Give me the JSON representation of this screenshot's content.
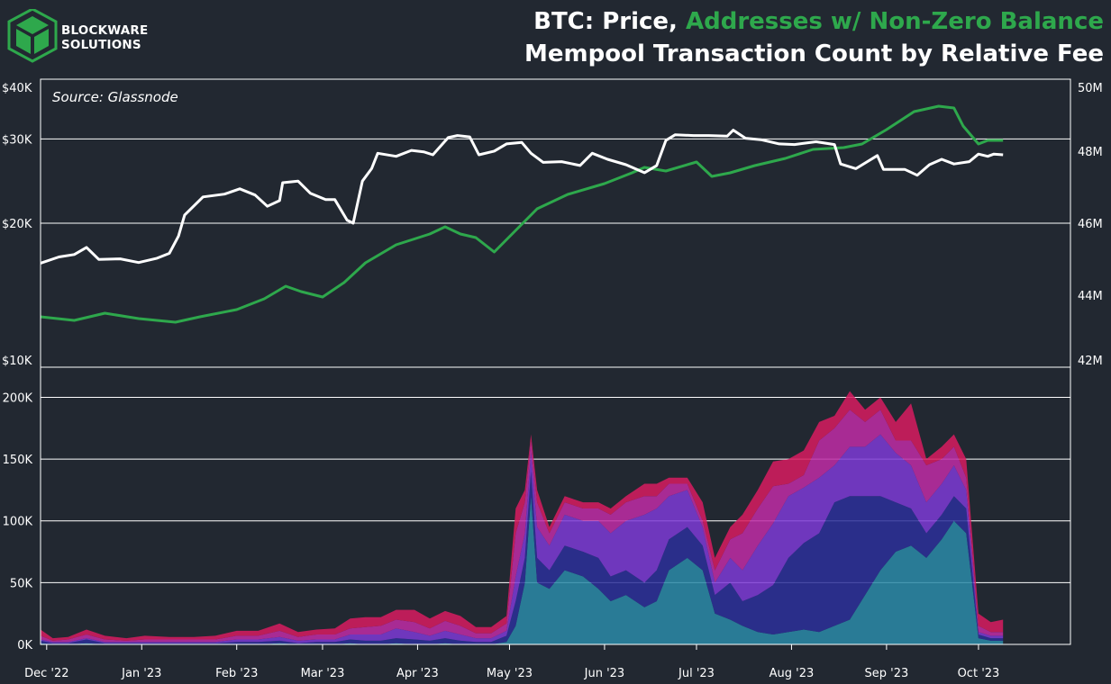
{
  "brand": {
    "name_line1": "BLOCKWARE",
    "name_line2": "SOLUTIONS",
    "logo_color": "#2ea84c"
  },
  "title": {
    "part1": "BTC: Price, ",
    "part2": "Addresses w/ Non-Zero Balance",
    "line2": "Mempool Transaction Count by Relative Fee"
  },
  "source_label": "Source: Glassnode",
  "colors": {
    "background": "#222831",
    "price": "#ffffff",
    "addresses": "#2ea84c",
    "grid": "#ffffff"
  },
  "chart_data": [
    {
      "type": "line",
      "x_axis": {
        "type": "date",
        "range": [
          "2022-11-29",
          "2023-10-31"
        ]
      },
      "y_left": {
        "scale": "log",
        "range": [
          10000,
          40000
        ],
        "ticks": [
          10000,
          20000,
          30000,
          40000
        ],
        "tick_labels": [
          "$10K",
          "$20K",
          "$30K",
          "$40K"
        ]
      },
      "y_right": {
        "scale": "linear",
        "range": [
          42000000,
          50000000
        ],
        "ticks": [
          42000000,
          44000000,
          46000000,
          48000000,
          50000000
        ],
        "tick_labels": [
          "42M",
          "44M",
          "46M",
          "48M",
          "50M"
        ]
      },
      "grid": "horizontal",
      "series": [
        {
          "axis": "left",
          "color": "#ffffff",
          "points": [
            [
              "2022-11-29",
              16500
            ],
            [
              "2022-12-05",
              17000
            ],
            [
              "2022-12-10",
              17200
            ],
            [
              "2022-12-14",
              17800
            ],
            [
              "2022-12-18",
              16800
            ],
            [
              "2022-12-25",
              16850
            ],
            [
              "2022-12-31",
              16550
            ],
            [
              "2023-01-06",
              16900
            ],
            [
              "2023-01-10",
              17300
            ],
            [
              "2023-01-13",
              18800
            ],
            [
              "2023-01-15",
              20800
            ],
            [
              "2023-01-21",
              22700
            ],
            [
              "2023-01-28",
              23000
            ],
            [
              "2023-02-02",
              23600
            ],
            [
              "2023-02-07",
              22900
            ],
            [
              "2023-02-11",
              21700
            ],
            [
              "2023-02-15",
              22300
            ],
            [
              "2023-02-16",
              24300
            ],
            [
              "2023-02-21",
              24500
            ],
            [
              "2023-02-25",
              23100
            ],
            [
              "2023-03-02",
              22400
            ],
            [
              "2023-03-05",
              22400
            ],
            [
              "2023-03-09",
              20300
            ],
            [
              "2023-03-11",
              20000
            ],
            [
              "2023-03-14",
              24500
            ],
            [
              "2023-03-17",
              26000
            ],
            [
              "2023-03-19",
              28000
            ],
            [
              "2023-03-25",
              27600
            ],
            [
              "2023-03-30",
              28400
            ],
            [
              "2023-04-03",
              28200
            ],
            [
              "2023-04-06",
              27800
            ],
            [
              "2023-04-11",
              30200
            ],
            [
              "2023-04-14",
              30500
            ],
            [
              "2023-04-18",
              30300
            ],
            [
              "2023-04-21",
              27800
            ],
            [
              "2023-04-26",
              28300
            ],
            [
              "2023-04-30",
              29300
            ],
            [
              "2023-05-05",
              29500
            ],
            [
              "2023-05-08",
              28000
            ],
            [
              "2023-05-12",
              26800
            ],
            [
              "2023-05-18",
              26900
            ],
            [
              "2023-05-24",
              26400
            ],
            [
              "2023-05-28",
              28000
            ],
            [
              "2023-06-02",
              27200
            ],
            [
              "2023-06-08",
              26500
            ],
            [
              "2023-06-14",
              25500
            ],
            [
              "2023-06-18",
              26400
            ],
            [
              "2023-06-21",
              29800
            ],
            [
              "2023-06-24",
              30600
            ],
            [
              "2023-06-30",
              30500
            ],
            [
              "2023-07-05",
              30500
            ],
            [
              "2023-07-11",
              30400
            ],
            [
              "2023-07-13",
              31300
            ],
            [
              "2023-07-17",
              30100
            ],
            [
              "2023-07-22",
              29900
            ],
            [
              "2023-07-28",
              29300
            ],
            [
              "2023-08-02",
              29200
            ],
            [
              "2023-08-09",
              29600
            ],
            [
              "2023-08-15",
              29200
            ],
            [
              "2023-08-17",
              26600
            ],
            [
              "2023-08-22",
              26000
            ],
            [
              "2023-08-29",
              27700
            ],
            [
              "2023-08-31",
              25900
            ],
            [
              "2023-09-07",
              25900
            ],
            [
              "2023-09-11",
              25200
            ],
            [
              "2023-09-15",
              26500
            ],
            [
              "2023-09-19",
              27200
            ],
            [
              "2023-09-23",
              26600
            ],
            [
              "2023-09-28",
              26900
            ],
            [
              "2023-10-01",
              27900
            ],
            [
              "2023-10-04",
              27600
            ],
            [
              "2023-10-06",
              27900
            ],
            [
              "2023-10-09",
              27800
            ]
          ]
        },
        {
          "axis": "right",
          "color": "#2ea84c",
          "points": [
            [
              "2022-11-29",
              43400
            ],
            [
              "2022-12-10",
              43300
            ],
            [
              "2022-12-20",
              43500
            ],
            [
              "2022-12-31",
              43350
            ],
            [
              "2023-01-12",
              43250
            ],
            [
              "2023-01-20",
              43400
            ],
            [
              "2023-02-01",
              43600
            ],
            [
              "2023-02-10",
              43900
            ],
            [
              "2023-02-17",
              44250
            ],
            [
              "2023-02-22",
              44100
            ],
            [
              "2023-03-01",
              43950
            ],
            [
              "2023-03-08",
              44350
            ],
            [
              "2023-03-15",
              44900
            ],
            [
              "2023-03-25",
              45400
            ],
            [
              "2023-04-05",
              45700
            ],
            [
              "2023-04-10",
              45900
            ],
            [
              "2023-04-15",
              45700
            ],
            [
              "2023-04-20",
              45600
            ],
            [
              "2023-04-26",
              45200
            ],
            [
              "2023-05-03",
              45800
            ],
            [
              "2023-05-10",
              46400
            ],
            [
              "2023-05-20",
              46800
            ],
            [
              "2023-06-01",
              47100
            ],
            [
              "2023-06-10",
              47400
            ],
            [
              "2023-06-14",
              47550
            ],
            [
              "2023-06-21",
              47450
            ],
            [
              "2023-07-01",
              47700
            ],
            [
              "2023-07-06",
              47300
            ],
            [
              "2023-07-12",
              47400
            ],
            [
              "2023-07-20",
              47600
            ],
            [
              "2023-07-30",
              47800
            ],
            [
              "2023-08-08",
              48050
            ],
            [
              "2023-08-18",
              48100
            ],
            [
              "2023-08-24",
              48200
            ],
            [
              "2023-09-01",
              48600
            ],
            [
              "2023-09-10",
              49100
            ],
            [
              "2023-09-18",
              49250
            ],
            [
              "2023-09-23",
              49200
            ],
            [
              "2023-09-26",
              48700
            ],
            [
              "2023-10-01",
              48200
            ],
            [
              "2023-10-04",
              48300
            ],
            [
              "2023-10-09",
              48300
            ]
          ]
        }
      ]
    },
    {
      "type": "area",
      "stacked": true,
      "x_axis": {
        "type": "date",
        "range": [
          "2022-11-29",
          "2023-10-31"
        ],
        "ticks": [
          "2022-12-01",
          "2023-01-01",
          "2023-02-01",
          "2023-03-01",
          "2023-04-01",
          "2023-05-01",
          "2023-06-01",
          "2023-07-01",
          "2023-08-01",
          "2023-09-01",
          "2023-10-01"
        ],
        "tick_labels": [
          "Dec '22",
          "Jan '23",
          "Feb '23",
          "Mar '23",
          "Apr '23",
          "May '23",
          "Jun '23",
          "Jul '23",
          "Aug '23",
          "Sep '23",
          "Oct '23"
        ]
      },
      "y_axis": {
        "range": [
          0,
          220000
        ],
        "ticks": [
          0,
          50000,
          100000,
          150000,
          200000
        ],
        "tick_labels": [
          "0K",
          "50K",
          "100K",
          "150K",
          "200K"
        ]
      },
      "grid": "horizontal",
      "x": [
        "2022-11-29",
        "2022-12-03",
        "2022-12-08",
        "2022-12-14",
        "2022-12-20",
        "2022-12-27",
        "2023-01-02",
        "2023-01-10",
        "2023-01-18",
        "2023-01-25",
        "2023-02-01",
        "2023-02-08",
        "2023-02-15",
        "2023-02-21",
        "2023-02-27",
        "2023-03-05",
        "2023-03-10",
        "2023-03-15",
        "2023-03-20",
        "2023-03-25",
        "2023-03-31",
        "2023-04-05",
        "2023-04-10",
        "2023-04-15",
        "2023-04-20",
        "2023-04-25",
        "2023-04-30",
        "2023-05-03",
        "2023-05-06",
        "2023-05-08",
        "2023-05-10",
        "2023-05-14",
        "2023-05-19",
        "2023-05-25",
        "2023-05-30",
        "2023-06-03",
        "2023-06-08",
        "2023-06-14",
        "2023-06-18",
        "2023-06-22",
        "2023-06-28",
        "2023-07-03",
        "2023-07-07",
        "2023-07-12",
        "2023-07-16",
        "2023-07-21",
        "2023-07-26",
        "2023-07-31",
        "2023-08-05",
        "2023-08-10",
        "2023-08-15",
        "2023-08-20",
        "2023-08-25",
        "2023-08-30",
        "2023-09-04",
        "2023-09-09",
        "2023-09-14",
        "2023-09-19",
        "2023-09-23",
        "2023-09-27",
        "2023-10-01",
        "2023-10-05",
        "2023-10-09"
      ],
      "series": [
        {
          "color": "#2a8aa8",
          "values": [
            1000,
            0,
            0,
            1000,
            0,
            0,
            0,
            0,
            0,
            0,
            0,
            0,
            1000,
            0,
            0,
            0,
            1000,
            0,
            0,
            1000,
            0,
            0,
            1000,
            0,
            0,
            0,
            2000,
            15000,
            50000,
            120000,
            50000,
            45000,
            60000,
            55000,
            45000,
            35000,
            40000,
            30000,
            35000,
            60000,
            70000,
            60000,
            25000,
            20000,
            15000,
            10000,
            8000,
            10000,
            12000,
            10000,
            15000,
            20000,
            40000,
            60000,
            75000,
            80000,
            70000,
            85000,
            100000,
            90000,
            5000,
            3000,
            3000
          ]
        },
        {
          "color": "#2b2f9a",
          "values": [
            2000,
            1000,
            1000,
            3000,
            1000,
            1000,
            1000,
            1000,
            1000,
            1000,
            2000,
            2000,
            2000,
            1000,
            2000,
            2000,
            3000,
            3000,
            3000,
            4000,
            4000,
            3000,
            4000,
            3000,
            2000,
            2000,
            5000,
            20000,
            20000,
            20000,
            20000,
            15000,
            20000,
            20000,
            25000,
            20000,
            20000,
            20000,
            25000,
            25000,
            25000,
            20000,
            15000,
            30000,
            20000,
            30000,
            40000,
            60000,
            70000,
            80000,
            100000,
            100000,
            80000,
            60000,
            40000,
            30000,
            20000,
            20000,
            20000,
            20000,
            3000,
            2000,
            2000
          ]
        },
        {
          "color": "#7d3ad6",
          "values": [
            1000,
            1000,
            1000,
            1000,
            1000,
            1000,
            1000,
            1000,
            1000,
            1000,
            2000,
            2000,
            3000,
            2000,
            2000,
            2000,
            4000,
            5000,
            5000,
            8000,
            6000,
            4000,
            6000,
            5000,
            3000,
            3000,
            4000,
            20000,
            20000,
            15000,
            25000,
            20000,
            25000,
            25000,
            30000,
            35000,
            40000,
            55000,
            50000,
            35000,
            30000,
            15000,
            10000,
            20000,
            25000,
            40000,
            50000,
            50000,
            45000,
            45000,
            30000,
            40000,
            40000,
            50000,
            40000,
            35000,
            25000,
            25000,
            25000,
            15000,
            2000,
            2000,
            2000
          ]
        },
        {
          "color": "#c02ba6",
          "values": [
            3000,
            1000,
            2000,
            3000,
            2000,
            1000,
            2000,
            2000,
            2000,
            2000,
            3000,
            3000,
            5000,
            3000,
            4000,
            4000,
            5000,
            6000,
            7000,
            7000,
            8000,
            6000,
            8000,
            7000,
            4000,
            4000,
            6000,
            35000,
            25000,
            10000,
            20000,
            10000,
            10000,
            10000,
            10000,
            15000,
            15000,
            15000,
            10000,
            10000,
            5000,
            5000,
            10000,
            15000,
            30000,
            30000,
            30000,
            10000,
            10000,
            30000,
            30000,
            30000,
            20000,
            20000,
            10000,
            20000,
            30000,
            20000,
            15000,
            10000,
            5000,
            3000,
            3000
          ]
        },
        {
          "color": "#d81b60",
          "values": [
            5000,
            2000,
            2000,
            4000,
            3000,
            2000,
            3000,
            2000,
            2000,
            3000,
            4000,
            4000,
            6000,
            4000,
            4000,
            5000,
            8000,
            8000,
            7000,
            8000,
            10000,
            8000,
            8000,
            8000,
            5000,
            5000,
            6000,
            20000,
            10000,
            5000,
            10000,
            5000,
            5000,
            5000,
            5000,
            5000,
            5000,
            10000,
            10000,
            5000,
            5000,
            15000,
            10000,
            10000,
            15000,
            15000,
            20000,
            20000,
            20000,
            15000,
            10000,
            15000,
            10000,
            10000,
            15000,
            30000,
            5000,
            10000,
            10000,
            15000,
            10000,
            8000,
            10000
          ]
        }
      ]
    }
  ]
}
